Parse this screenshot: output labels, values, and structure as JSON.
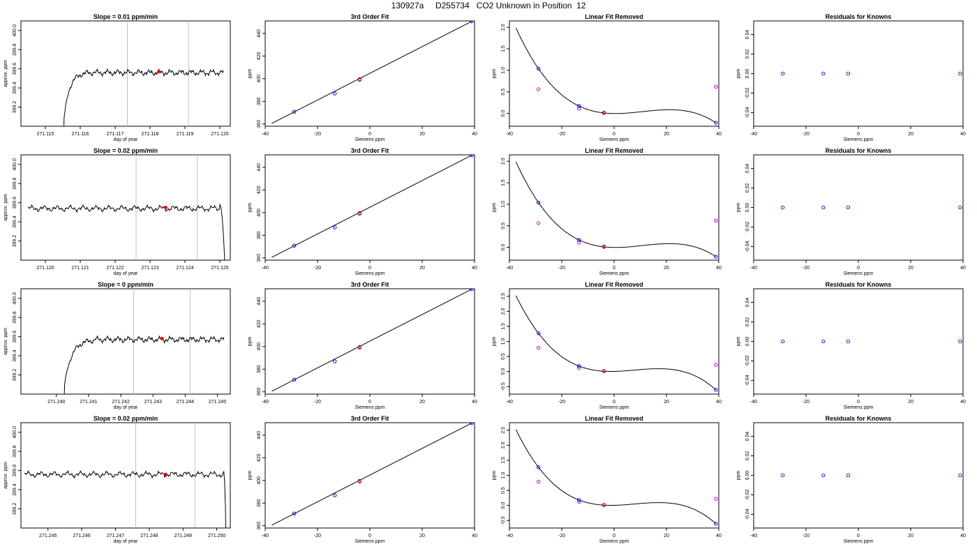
{
  "title": "130927a     D255734   CO2 Unknown in Position  12",
  "colors": {
    "axis": "#000000",
    "window": "#c0c0c0",
    "marker_red": "#ff0000",
    "known_blue": "#0000ff",
    "resid_magenta": "#cc00cc"
  },
  "chart_data": [
    {
      "row": 1,
      "type": "line",
      "title": "Slope =  0.01  ppm/min",
      "xlabel": "day of year",
      "ylabel": "approx. ppm",
      "xlim": [
        271.1143,
        271.1203
      ],
      "ylim": [
        399.0,
        400.1
      ],
      "xticks": [
        271.115,
        271.116,
        271.117,
        271.118,
        271.119,
        271.12
      ],
      "xtick_labels": [
        "271.115",
        "271.116",
        "271.117",
        "271.118",
        "271.119",
        "271.120"
      ],
      "yticks": [
        399.2,
        399.4,
        399.6,
        399.8,
        400.0
      ],
      "ytick_labels": [
        "399.2",
        "399.4",
        "399.6",
        "399.8",
        "400.0"
      ],
      "trace": {
        "x_start": 271.1155,
        "x_end": 271.1201,
        "rise_from": "start",
        "rise_end": 271.1162,
        "level": 399.56
      },
      "window_lines": [
        271.11735,
        271.1191
      ],
      "marker": {
        "x": 271.11825,
        "y": 399.57
      }
    },
    {
      "row": 1,
      "type": "scatter",
      "title": "3rd Order Fit",
      "xlabel": "Siemens ppm",
      "ylabel": "ppm",
      "xlim": [
        -40,
        40
      ],
      "ylim": [
        358,
        451
      ],
      "xticks": [
        -40,
        -20,
        0,
        20,
        40
      ],
      "xtick_labels": [
        "-40",
        "-20",
        "0",
        "20",
        "40"
      ],
      "yticks": [
        360,
        380,
        400,
        420,
        440
      ],
      "ytick_labels": [
        "360",
        "380",
        "400",
        "420",
        "440"
      ],
      "knowns": [
        [
          -28.9,
          370.8
        ],
        [
          -13.4,
          386.9
        ],
        [
          -3.9,
          399.1
        ],
        [
          38.9,
          450.6
        ]
      ],
      "unknown": [
        -3.9,
        399.6
      ],
      "fit_line": {
        "x": [
          -37.5,
          38.9
        ],
        "y": [
          360.5,
          450.6
        ]
      }
    },
    {
      "row": 1,
      "type": "scatter",
      "title": "Linear Fit Removed",
      "xlabel": "Siemens ppm",
      "ylabel": "ppm",
      "xlim": [
        -40,
        40
      ],
      "ylim": [
        -0.3,
        2.15
      ],
      "xticks": [
        -40,
        -20,
        0,
        20,
        40
      ],
      "xtick_labels": [
        "-40",
        "-20",
        "0",
        "20",
        "40"
      ],
      "yticks": [
        0,
        0.5,
        1.0,
        1.5,
        2.0
      ],
      "ytick_labels": [
        "0.0",
        "0.5",
        "1.0",
        "1.5",
        "2.0"
      ],
      "knowns": [
        [
          -28.9,
          1.04
        ],
        [
          -13.4,
          0.17
        ],
        [
          -3.9,
          0.01
        ],
        [
          38.9,
          -0.22
        ]
      ],
      "knowns_linear": [
        [
          -28.9,
          0.56
        ],
        [
          -13.4,
          0.11
        ],
        [
          38.9,
          0.62
        ]
      ],
      "unknown": [
        -3.9,
        0.02
      ],
      "curve": {
        "x_start": -37.5,
        "x_end": 38.9,
        "y_start": 2.06
      }
    },
    {
      "row": 1,
      "type": "scatter",
      "title": "Residuals for Knowns",
      "xlabel": "Siemens ppm",
      "ylabel": "ppm",
      "xlim": [
        -40,
        40
      ],
      "ylim": [
        -0.054,
        0.054
      ],
      "xticks": [
        -40,
        -20,
        0,
        20,
        40
      ],
      "xtick_labels": [
        "-40",
        "-20",
        "0",
        "20",
        "40"
      ],
      "yticks": [
        -0.04,
        -0.02,
        0,
        0.02,
        0.04
      ],
      "ytick_labels": [
        "-0.04",
        "-0.02",
        "0.00",
        "0.02",
        "0.04"
      ],
      "knowns": [
        [
          -28.9,
          0
        ],
        [
          -13.4,
          0
        ],
        [
          -3.9,
          0
        ],
        [
          38.9,
          0
        ]
      ]
    },
    {
      "row": 2,
      "type": "line",
      "title": "Slope =  0.02  ppm/min",
      "xlabel": "day of year",
      "ylabel": "approx. ppm",
      "xlim": [
        271.1193,
        271.1253
      ],
      "ylim": [
        399.0,
        400.1
      ],
      "xticks": [
        271.12,
        271.121,
        271.122,
        271.123,
        271.124,
        271.125
      ],
      "xtick_labels": [
        "271.120",
        "271.121",
        "271.122",
        "271.123",
        "271.124",
        "271.125"
      ],
      "yticks": [
        399.2,
        399.4,
        399.6,
        399.8,
        400.0
      ],
      "ytick_labels": [
        "399.2",
        "399.4",
        "399.6",
        "399.8",
        "400.0"
      ],
      "trace": {
        "x_start": 271.1195,
        "x_end": 271.1252,
        "rise_from": "end",
        "rise_end": 271.125,
        "level": 399.54
      },
      "window_lines": [
        271.1226,
        271.12435
      ],
      "marker": {
        "x": 271.12345,
        "y": 399.55
      }
    },
    {
      "row": 2,
      "type": "scatter",
      "title": "3rd Order Fit",
      "xlabel": "Siemens ppm",
      "ylabel": "ppm",
      "xlim": [
        -40,
        40
      ],
      "ylim": [
        358,
        451
      ],
      "xticks": [
        -40,
        -20,
        0,
        20,
        40
      ],
      "xtick_labels": [
        "-40",
        "-20",
        "0",
        "20",
        "40"
      ],
      "yticks": [
        360,
        380,
        400,
        420,
        440
      ],
      "ytick_labels": [
        "360",
        "380",
        "400",
        "420",
        "440"
      ],
      "knowns": [
        [
          -28.9,
          370.8
        ],
        [
          -13.4,
          386.9
        ],
        [
          -3.9,
          399.1
        ],
        [
          38.9,
          450.6
        ]
      ],
      "unknown": [
        -3.9,
        399.6
      ],
      "fit_line": {
        "x": [
          -37.5,
          38.9
        ],
        "y": [
          360.5,
          450.6
        ]
      }
    },
    {
      "row": 2,
      "type": "scatter",
      "title": "Linear Fit Removed",
      "xlabel": "Siemens ppm",
      "ylabel": "ppm",
      "xlim": [
        -40,
        40
      ],
      "ylim": [
        -0.3,
        2.15
      ],
      "xticks": [
        -40,
        -20,
        0,
        20,
        40
      ],
      "xtick_labels": [
        "-40",
        "-20",
        "0",
        "20",
        "40"
      ],
      "yticks": [
        0,
        0.5,
        1.0,
        1.5,
        2.0
      ],
      "ytick_labels": [
        "0.0",
        "0.5",
        "1.0",
        "1.5",
        "2.0"
      ],
      "knowns": [
        [
          -28.9,
          1.04
        ],
        [
          -13.4,
          0.17
        ],
        [
          -3.9,
          0.01
        ],
        [
          38.9,
          -0.22
        ]
      ],
      "knowns_linear": [
        [
          -28.9,
          0.56
        ],
        [
          -13.4,
          0.11
        ],
        [
          38.9,
          0.62
        ]
      ],
      "unknown": [
        -3.9,
        0.02
      ],
      "curve": {
        "x_start": -37.5,
        "x_end": 38.9,
        "y_start": 2.06
      }
    },
    {
      "row": 2,
      "type": "scatter",
      "title": "Residuals for Knowns",
      "xlabel": "Siemens ppm",
      "ylabel": "ppm",
      "xlim": [
        -40,
        40
      ],
      "ylim": [
        -0.054,
        0.054
      ],
      "xticks": [
        -40,
        -20,
        0,
        20,
        40
      ],
      "xtick_labels": [
        "-40",
        "-20",
        "0",
        "20",
        "40"
      ],
      "yticks": [
        -0.04,
        -0.02,
        0,
        0.02,
        0.04
      ],
      "ytick_labels": [
        "-0.04",
        "-0.02",
        "0.00",
        "0.02",
        "0.04"
      ],
      "knowns": [
        [
          -28.9,
          0
        ],
        [
          -13.4,
          0
        ],
        [
          -3.9,
          0
        ],
        [
          38.9,
          0
        ]
      ]
    },
    {
      "row": 3,
      "type": "line",
      "title": "Slope =  0  ppm/min",
      "xlabel": "day of year",
      "ylabel": "approx. ppm",
      "xlim": [
        271.2389,
        271.2454
      ],
      "ylim": [
        399.0,
        400.1
      ],
      "xticks": [
        271.24,
        271.241,
        271.242,
        271.243,
        271.244,
        271.245
      ],
      "xtick_labels": [
        "271.240",
        "271.241",
        "271.242",
        "271.243",
        "271.244",
        "271.245"
      ],
      "yticks": [
        399.2,
        399.4,
        399.6,
        399.8,
        400.0
      ],
      "ytick_labels": [
        "399.2",
        "399.4",
        "399.6",
        "399.8",
        "400.0"
      ],
      "trace": {
        "x_start": 271.2402,
        "x_end": 271.2452,
        "rise_from": "start",
        "rise_end": 271.2412,
        "level": 399.57
      },
      "window_lines": [
        271.2424,
        271.24415
      ],
      "marker": {
        "x": 271.24328,
        "y": 399.58
      }
    },
    {
      "row": 3,
      "type": "scatter",
      "title": "3rd Order Fit",
      "xlabel": "Siemens ppm",
      "ylabel": "ppm",
      "xlim": [
        -40,
        40
      ],
      "ylim": [
        358,
        451
      ],
      "xticks": [
        -40,
        -20,
        0,
        20,
        40
      ],
      "xtick_labels": [
        "-40",
        "-20",
        "0",
        "20",
        "40"
      ],
      "yticks": [
        360,
        380,
        400,
        420,
        440
      ],
      "ytick_labels": [
        "360",
        "380",
        "400",
        "420",
        "440"
      ],
      "knowns": [
        [
          -28.9,
          370.8
        ],
        [
          -13.4,
          386.9
        ],
        [
          -3.9,
          399.1
        ],
        [
          38.9,
          450.6
        ]
      ],
      "unknown": [
        -3.9,
        399.6
      ],
      "fit_line": {
        "x": [
          -37.5,
          38.9
        ],
        "y": [
          360.5,
          450.6
        ]
      }
    },
    {
      "row": 3,
      "type": "scatter",
      "title": "Linear Fit Removed",
      "xlabel": "Siemens ppm",
      "ylabel": "ppm",
      "xlim": [
        -40,
        40
      ],
      "ylim": [
        -0.75,
        2.75
      ],
      "xticks": [
        -40,
        -20,
        0,
        20,
        40
      ],
      "xtick_labels": [
        "-40",
        "-20",
        "0",
        "20",
        "40"
      ],
      "yticks": [
        -0.5,
        0,
        0.5,
        1.0,
        1.5,
        2.0,
        2.5
      ],
      "ytick_labels": [
        "-0.5",
        "0.0",
        "0.5",
        "1.0",
        "1.5",
        "2.0",
        "2.5"
      ],
      "knowns": [
        [
          -28.9,
          1.27
        ],
        [
          -13.4,
          0.18
        ],
        [
          -3.9,
          0.01
        ],
        [
          38.9,
          -0.61
        ]
      ],
      "knowns_linear": [
        [
          -28.9,
          0.79
        ],
        [
          -13.4,
          0.12
        ],
        [
          38.9,
          0.22
        ]
      ],
      "unknown": [
        -3.9,
        0.02
      ],
      "curve": {
        "x_start": -37.5,
        "x_end": 38.9,
        "y_start": 2.58
      }
    },
    {
      "row": 3,
      "type": "scatter",
      "title": "Residuals for Knowns",
      "xlabel": "Siemens ppm",
      "ylabel": "ppm",
      "xlim": [
        -40,
        40
      ],
      "ylim": [
        -0.054,
        0.054
      ],
      "xticks": [
        -40,
        -20,
        0,
        20,
        40
      ],
      "xtick_labels": [
        "-40",
        "-20",
        "0",
        "20",
        "40"
      ],
      "yticks": [
        -0.04,
        -0.02,
        0,
        0.02,
        0.04
      ],
      "ytick_labels": [
        "-0.04",
        "-0.02",
        "0.00",
        "0.02",
        "0.04"
      ],
      "knowns": [
        [
          -28.9,
          0
        ],
        [
          -13.4,
          0
        ],
        [
          -3.9,
          0
        ],
        [
          38.9,
          0
        ]
      ]
    },
    {
      "row": 4,
      "type": "line",
      "title": "Slope =  0.02  ppm/min",
      "xlabel": "day of year",
      "ylabel": "approx. ppm",
      "xlim": [
        271.2442,
        271.2504
      ],
      "ylim": [
        399.0,
        400.1
      ],
      "xticks": [
        271.245,
        271.246,
        271.247,
        271.248,
        271.249,
        271.25
      ],
      "xtick_labels": [
        "271.245",
        "271.246",
        "271.247",
        "271.248",
        "271.249",
        "271.250"
      ],
      "yticks": [
        399.2,
        399.4,
        399.6,
        399.8,
        400.0
      ],
      "ytick_labels": [
        "399.2",
        "399.4",
        "399.6",
        "399.8",
        "400.0"
      ],
      "trace": {
        "x_start": 271.2443,
        "x_end": 271.2503,
        "rise_from": "end",
        "rise_end": 271.2502,
        "level": 399.56
      },
      "window_lines": [
        271.2476,
        271.24935
      ],
      "marker": {
        "x": 271.24848,
        "y": 399.56
      }
    },
    {
      "row": 4,
      "type": "scatter",
      "title": "3rd Order Fit",
      "xlabel": "Siemens ppm",
      "ylabel": "ppm",
      "xlim": [
        -40,
        40
      ],
      "ylim": [
        358,
        451
      ],
      "xticks": [
        -40,
        -20,
        0,
        20,
        40
      ],
      "xtick_labels": [
        "-40",
        "-20",
        "0",
        "20",
        "40"
      ],
      "yticks": [
        360,
        380,
        400,
        420,
        440
      ],
      "ytick_labels": [
        "360",
        "380",
        "400",
        "420",
        "440"
      ],
      "knowns": [
        [
          -28.9,
          370.8
        ],
        [
          -13.4,
          386.9
        ],
        [
          -3.9,
          399.1
        ],
        [
          38.9,
          450.6
        ]
      ],
      "unknown": [
        -3.9,
        399.6
      ],
      "fit_line": {
        "x": [
          -37.5,
          38.9
        ],
        "y": [
          360.5,
          450.6
        ]
      }
    },
    {
      "row": 4,
      "type": "scatter",
      "title": "Linear Fit Removed",
      "xlabel": "Siemens ppm",
      "ylabel": "ppm",
      "xlim": [
        -40,
        40
      ],
      "ylim": [
        -0.75,
        2.75
      ],
      "xticks": [
        -40,
        -20,
        0,
        20,
        40
      ],
      "xtick_labels": [
        "-40",
        "-20",
        "0",
        "20",
        "40"
      ],
      "yticks": [
        -0.5,
        0,
        0.5,
        1.0,
        1.5,
        2.0,
        2.5
      ],
      "ytick_labels": [
        "-0.5",
        "0.0",
        "0.5",
        "1.0",
        "1.5",
        "2.0",
        "2.5"
      ],
      "knowns": [
        [
          -28.9,
          1.27
        ],
        [
          -13.4,
          0.18
        ],
        [
          -3.9,
          0.01
        ],
        [
          38.9,
          -0.61
        ]
      ],
      "knowns_linear": [
        [
          -28.9,
          0.79
        ],
        [
          -13.4,
          0.12
        ],
        [
          38.9,
          0.22
        ]
      ],
      "unknown": [
        -3.9,
        0.02
      ],
      "curve": {
        "x_start": -37.5,
        "x_end": 38.9,
        "y_start": 2.58
      }
    },
    {
      "row": 4,
      "type": "scatter",
      "title": "Residuals for Knowns",
      "xlabel": "Siemens ppm",
      "ylabel": "ppm",
      "xlim": [
        -40,
        40
      ],
      "ylim": [
        -0.054,
        0.054
      ],
      "xticks": [
        -40,
        -20,
        0,
        20,
        40
      ],
      "xtick_labels": [
        "-40",
        "-20",
        "0",
        "20",
        "40"
      ],
      "yticks": [
        -0.04,
        -0.02,
        0,
        0.02,
        0.04
      ],
      "ytick_labels": [
        "-0.04",
        "-0.02",
        "0.00",
        "0.02",
        "0.04"
      ],
      "knowns": [
        [
          -28.9,
          0
        ],
        [
          -13.4,
          0
        ],
        [
          -3.9,
          0
        ],
        [
          38.9,
          0
        ]
      ]
    }
  ]
}
